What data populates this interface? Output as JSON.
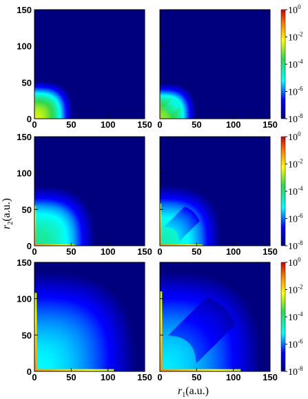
{
  "chart_data": {
    "type": "heatmap",
    "description_axes": {
      "xlabel_var": "r",
      "xlabel_sub": "1",
      "xlabel_unit": "(a.u.)",
      "ylabel_var": "r",
      "ylabel_sub": "2",
      "ylabel_unit": "(a.u.)"
    },
    "xlim": [
      0,
      150
    ],
    "ylim": [
      0,
      150
    ],
    "ticks": [
      "0",
      "50",
      "100",
      "150"
    ],
    "colorbar": {
      "scale": "log",
      "range": [
        1e-08,
        1
      ],
      "base": "10",
      "exponents": [
        "0",
        "-2",
        "-4",
        "-6",
        "-8"
      ],
      "colormap": [
        "#00007f",
        "#0000ff",
        "#00ffff",
        "#2fd84f",
        "#ffff00",
        "#ff7f00",
        "#cc0000"
      ]
    },
    "panels": [
      {
        "row": 0,
        "col": 0,
        "extent": 28,
        "log_peak": -2.5,
        "lobe": false
      },
      {
        "row": 0,
        "col": 1,
        "extent": 28,
        "log_peak": -3.0,
        "lobe": true
      },
      {
        "row": 1,
        "col": 0,
        "extent": 55,
        "log_peak": -4.2,
        "lobe": false
      },
      {
        "row": 1,
        "col": 1,
        "extent": 58,
        "log_peak": -4.5,
        "lobe": true
      },
      {
        "row": 2,
        "col": 0,
        "extent": 108,
        "log_peak": -5.2,
        "lobe": false
      },
      {
        "row": 2,
        "col": 1,
        "extent": 110,
        "log_peak": -5.3,
        "lobe": true
      }
    ]
  }
}
